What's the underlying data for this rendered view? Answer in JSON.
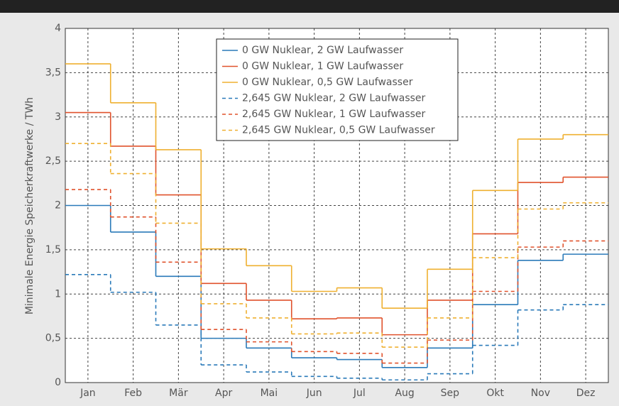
{
  "chart_data": {
    "type": "line",
    "step": true,
    "ylabel": "Minimale Energie Speicherkraftwerke / TWh",
    "categories": [
      "Jan",
      "Feb",
      "Mär",
      "Apr",
      "Mai",
      "Jun",
      "Jul",
      "Aug",
      "Sep",
      "Okt",
      "Nov",
      "Dez"
    ],
    "ylim": [
      0,
      4
    ],
    "yticks": [
      0,
      {
        "value": 0.5,
        "label": "0,5"
      },
      1,
      {
        "value": 1.5,
        "label": "1,5"
      },
      2,
      {
        "value": 2.5,
        "label": "2,5"
      },
      3,
      {
        "value": 3.5,
        "label": "3,5"
      },
      4
    ],
    "grid": true,
    "legend": "top",
    "series": [
      {
        "name": "0 GW Nuklear, 2 GW Laufwasser",
        "color": "#2a7ab9",
        "linestyle": "solid",
        "values": [
          2.0,
          1.7,
          1.2,
          0.5,
          0.39,
          0.28,
          0.26,
          0.17,
          0.39,
          0.88,
          1.38,
          1.45
        ]
      },
      {
        "name": "0 GW Nuklear, 1 GW Laufwasser",
        "color": "#e0522c",
        "linestyle": "solid",
        "values": [
          3.05,
          2.67,
          2.12,
          1.12,
          0.93,
          0.72,
          0.73,
          0.54,
          0.93,
          1.68,
          2.26,
          2.32
        ]
      },
      {
        "name": "0 GW Nuklear, 0,5 GW Laufwasser",
        "color": "#efb030",
        "linestyle": "solid",
        "values": [
          3.6,
          3.16,
          2.63,
          1.51,
          1.32,
          1.03,
          1.07,
          0.84,
          1.28,
          2.17,
          2.75,
          2.8
        ]
      },
      {
        "name": "2,645 GW Nuklear, 2 GW Laufwasser",
        "color": "#2a7ab9",
        "linestyle": "dashed",
        "values": [
          1.22,
          1.02,
          0.65,
          0.2,
          0.12,
          0.07,
          0.05,
          0.03,
          0.1,
          0.42,
          0.82,
          0.88
        ]
      },
      {
        "name": "2,645 GW Nuklear, 1 GW Laufwasser",
        "color": "#e0522c",
        "linestyle": "dashed",
        "values": [
          2.18,
          1.87,
          1.36,
          0.6,
          0.46,
          0.35,
          0.33,
          0.22,
          0.48,
          1.03,
          1.53,
          1.6
        ]
      },
      {
        "name": "2,645 GW Nuklear, 0,5 GW Laufwasser",
        "color": "#efb030",
        "linestyle": "dashed",
        "values": [
          2.7,
          2.36,
          1.8,
          0.89,
          0.73,
          0.55,
          0.56,
          0.4,
          0.73,
          1.41,
          1.96,
          2.03
        ]
      }
    ]
  }
}
